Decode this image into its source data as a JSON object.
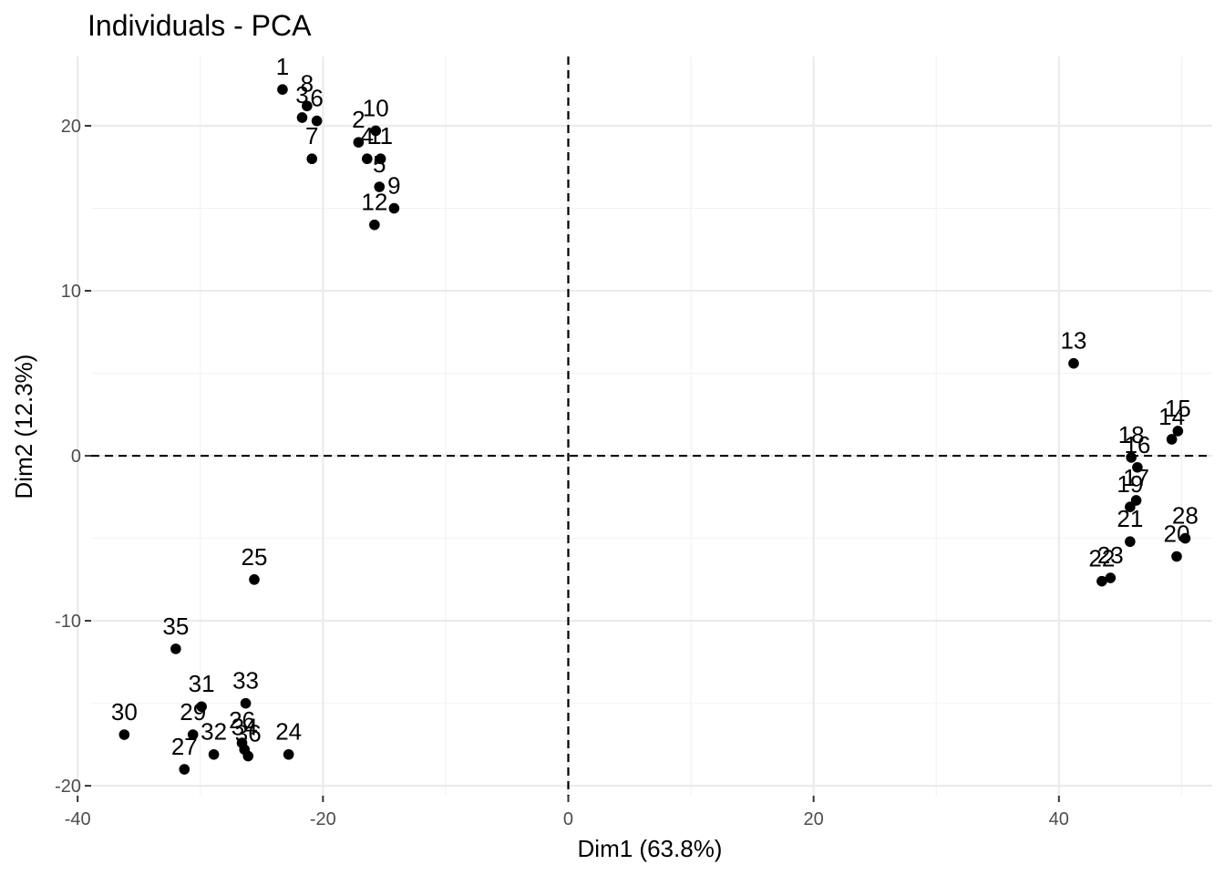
{
  "chart_data": {
    "type": "scatter",
    "title": "Individuals - PCA",
    "xlabel": "Dim1 (63.8%)",
    "ylabel": "Dim2 (12.3%)",
    "xlim": [
      -38.9,
      52.5
    ],
    "ylim": [
      -20.6,
      24.2
    ],
    "xticks": [
      -40,
      -20,
      0,
      20,
      40
    ],
    "yticks": [
      -20,
      -10,
      0,
      10,
      20
    ],
    "xticklabels": [
      "-40",
      "-20",
      "0",
      "20",
      "40"
    ],
    "yticklabels": [
      "-20",
      "-10",
      "0",
      "10",
      "20"
    ],
    "grid": true,
    "reference_lines": {
      "x": 0,
      "y": 0
    },
    "points": [
      {
        "label": "1",
        "x": -23.3,
        "y": 22.2
      },
      {
        "label": "2",
        "x": -17.1,
        "y": 19.0
      },
      {
        "label": "3",
        "x": -21.7,
        "y": 20.5
      },
      {
        "label": "4",
        "x": -16.4,
        "y": 18.0
      },
      {
        "label": "5",
        "x": -15.4,
        "y": 16.3
      },
      {
        "label": "6",
        "x": -20.5,
        "y": 20.3
      },
      {
        "label": "7",
        "x": -20.9,
        "y": 18.0
      },
      {
        "label": "8",
        "x": -21.3,
        "y": 21.2
      },
      {
        "label": "9",
        "x": -14.2,
        "y": 15.0
      },
      {
        "label": "10",
        "x": -15.7,
        "y": 19.7
      },
      {
        "label": "11",
        "x": -15.3,
        "y": 18.0
      },
      {
        "label": "12",
        "x": -15.8,
        "y": 14.0
      },
      {
        "label": "13",
        "x": 41.2,
        "y": 5.6
      },
      {
        "label": "14",
        "x": 49.2,
        "y": 1.0
      },
      {
        "label": "15",
        "x": 49.7,
        "y": 1.5
      },
      {
        "label": "16",
        "x": 46.4,
        "y": -0.7
      },
      {
        "label": "17",
        "x": 46.3,
        "y": -2.7
      },
      {
        "label": "18",
        "x": 45.9,
        "y": -0.1
      },
      {
        "label": "19",
        "x": 45.8,
        "y": -3.1
      },
      {
        "label": "20",
        "x": 49.6,
        "y": -6.1
      },
      {
        "label": "21",
        "x": 45.8,
        "y": -5.2
      },
      {
        "label": "22",
        "x": 43.5,
        "y": -7.6
      },
      {
        "label": "23",
        "x": 44.2,
        "y": -7.4
      },
      {
        "label": "24",
        "x": -22.8,
        "y": -18.1
      },
      {
        "label": "25",
        "x": -25.6,
        "y": -7.5
      },
      {
        "label": "26",
        "x": -26.6,
        "y": -17.4
      },
      {
        "label": "27",
        "x": -31.3,
        "y": -19.0
      },
      {
        "label": "28",
        "x": 50.3,
        "y": -5.0
      },
      {
        "label": "29",
        "x": -30.6,
        "y": -16.9
      },
      {
        "label": "30",
        "x": -36.2,
        "y": -16.9
      },
      {
        "label": "31",
        "x": -29.9,
        "y": -15.2
      },
      {
        "label": "32",
        "x": -28.9,
        "y": -18.1
      },
      {
        "label": "33",
        "x": -26.3,
        "y": -15.0
      },
      {
        "label": "34",
        "x": -26.4,
        "y": -17.8
      },
      {
        "label": "35",
        "x": -32.0,
        "y": -11.7
      },
      {
        "label": "36",
        "x": -26.1,
        "y": -18.2
      }
    ]
  }
}
